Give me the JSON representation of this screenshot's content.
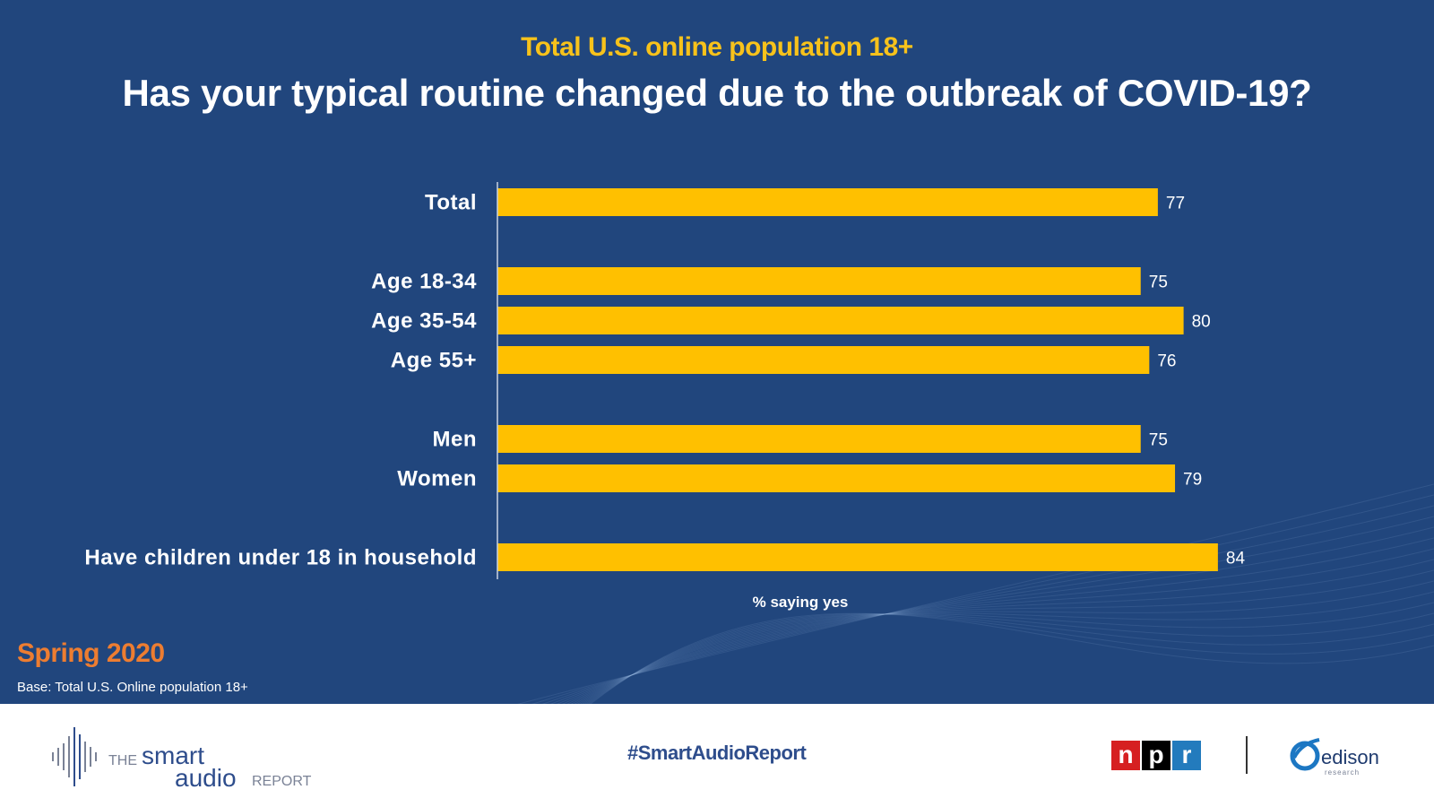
{
  "header": {
    "subtitle": "Total U.S. online population 18+",
    "title": "Has your typical routine changed due to the outbreak of COVID-19?"
  },
  "chart_data": {
    "type": "bar",
    "orientation": "horizontal",
    "categories": [
      "Total",
      "Age 18-34",
      "Age 35-54",
      "Age 55+",
      "Men",
      "Women",
      "Have children under 18 in household"
    ],
    "values": [
      77,
      75,
      80,
      76,
      75,
      79,
      84
    ],
    "groups": [
      [
        0
      ],
      [
        1,
        2,
        3
      ],
      [
        4,
        5
      ],
      [
        6
      ]
    ],
    "xlabel": "% saying yes",
    "ylabel": "",
    "xlim": [
      0,
      100
    ],
    "bar_color": "#ffc000",
    "grid": false
  },
  "footer_notes": {
    "season": "Spring 2020",
    "base": "Base: Total U.S. Online population 18+"
  },
  "footer": {
    "logo_the": "THE",
    "logo_smart": "smart",
    "logo_audio": "audio",
    "logo_report": "REPORT",
    "hashtag": "#SmartAudioReport",
    "npr_letters": [
      "n",
      "p",
      "r"
    ],
    "npr_colors": [
      "#d62021",
      "#000000",
      "#237bbd"
    ],
    "edison_name": "edison",
    "edison_sub": "research"
  },
  "colors": {
    "background": "#21467d",
    "accent_yellow": "#f7c21b",
    "accent_orange": "#ed7d31"
  }
}
